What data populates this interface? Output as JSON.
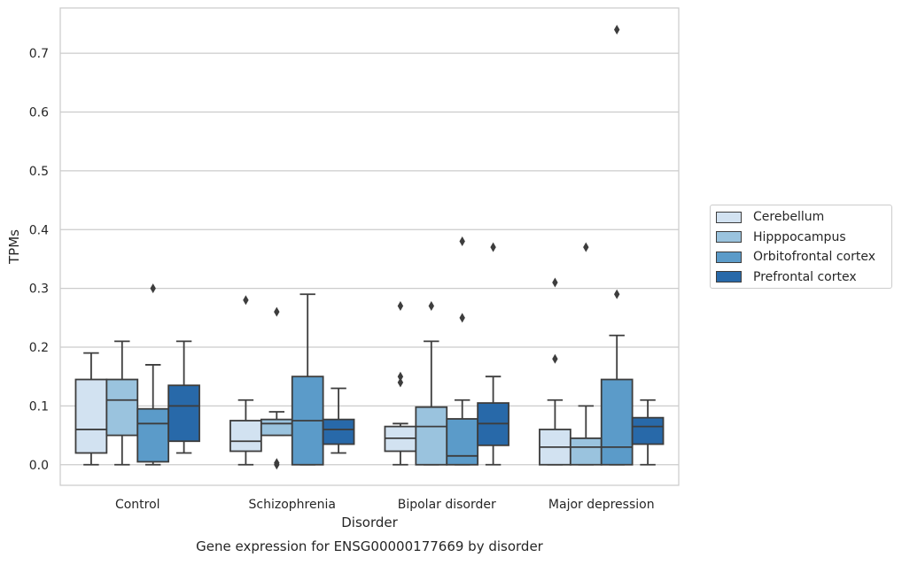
{
  "chart_data": {
    "type": "box",
    "title": "Gene expression for ENSG00000177669 by disorder",
    "xlabel": "Disorder",
    "ylabel": "TPMs",
    "ylim": [
      -0.035,
      0.777
    ],
    "yticks": [
      "0.0",
      "0.1",
      "0.2",
      "0.3",
      "0.4",
      "0.5",
      "0.6",
      "0.7"
    ],
    "grid": "horizontal",
    "legend_position": "right",
    "categories": [
      "Control",
      "Schizophrenia",
      "Bipolar disorder",
      "Major depression"
    ],
    "series": [
      {
        "name": "Cerebellum",
        "color": "#d2e2f1",
        "boxes": [
          {
            "whislo": 0.0,
            "q1": 0.02,
            "med": 0.06,
            "q3": 0.145,
            "whishi": 0.19,
            "fliers": []
          },
          {
            "whislo": 0.0,
            "q1": 0.023,
            "med": 0.04,
            "q3": 0.075,
            "whishi": 0.11,
            "fliers": [
              0.28
            ]
          },
          {
            "whislo": 0.0,
            "q1": 0.023,
            "med": 0.045,
            "q3": 0.065,
            "whishi": 0.07,
            "fliers": [
              0.14,
              0.15,
              0.27
            ]
          },
          {
            "whislo": 0.0,
            "q1": 0.0,
            "med": 0.03,
            "q3": 0.06,
            "whishi": 0.11,
            "fliers": [
              0.18,
              0.31
            ]
          }
        ]
      },
      {
        "name": "Hipppocampus",
        "color": "#9ac3de",
        "boxes": [
          {
            "whislo": 0.0,
            "q1": 0.05,
            "med": 0.11,
            "q3": 0.145,
            "whishi": 0.21,
            "fliers": []
          },
          {
            "whislo": 0.05,
            "q1": 0.05,
            "med": 0.07,
            "q3": 0.077,
            "whishi": 0.09,
            "fliers": [
              0.0,
              0.003,
              0.26
            ]
          },
          {
            "whislo": 0.0,
            "q1": 0.0,
            "med": 0.065,
            "q3": 0.098,
            "whishi": 0.21,
            "fliers": [
              0.27
            ]
          },
          {
            "whislo": 0.0,
            "q1": 0.0,
            "med": 0.03,
            "q3": 0.045,
            "whishi": 0.1,
            "fliers": [
              0.37
            ]
          }
        ]
      },
      {
        "name": "Orbitofrontal cortex",
        "color": "#5b9bc9",
        "boxes": [
          {
            "whislo": 0.0,
            "q1": 0.005,
            "med": 0.07,
            "q3": 0.095,
            "whishi": 0.17,
            "fliers": [
              0.3
            ]
          },
          {
            "whislo": 0.0,
            "q1": 0.0,
            "med": 0.075,
            "q3": 0.15,
            "whishi": 0.29,
            "fliers": []
          },
          {
            "whislo": 0.0,
            "q1": 0.0,
            "med": 0.015,
            "q3": 0.078,
            "whishi": 0.11,
            "fliers": [
              0.25,
              0.38
            ]
          },
          {
            "whislo": 0.0,
            "q1": 0.0,
            "med": 0.03,
            "q3": 0.145,
            "whishi": 0.22,
            "fliers": [
              0.29,
              0.74
            ]
          }
        ]
      },
      {
        "name": "Prefrontal cortex",
        "color": "#2869a9",
        "boxes": [
          {
            "whislo": 0.02,
            "q1": 0.04,
            "med": 0.1,
            "q3": 0.135,
            "whishi": 0.21,
            "fliers": []
          },
          {
            "whislo": 0.02,
            "q1": 0.035,
            "med": 0.06,
            "q3": 0.077,
            "whishi": 0.13,
            "fliers": []
          },
          {
            "whislo": 0.0,
            "q1": 0.033,
            "med": 0.07,
            "q3": 0.105,
            "whishi": 0.15,
            "fliers": [
              0.37
            ]
          },
          {
            "whislo": 0.0,
            "q1": 0.035,
            "med": 0.065,
            "q3": 0.08,
            "whishi": 0.11,
            "fliers": []
          }
        ]
      }
    ]
  }
}
